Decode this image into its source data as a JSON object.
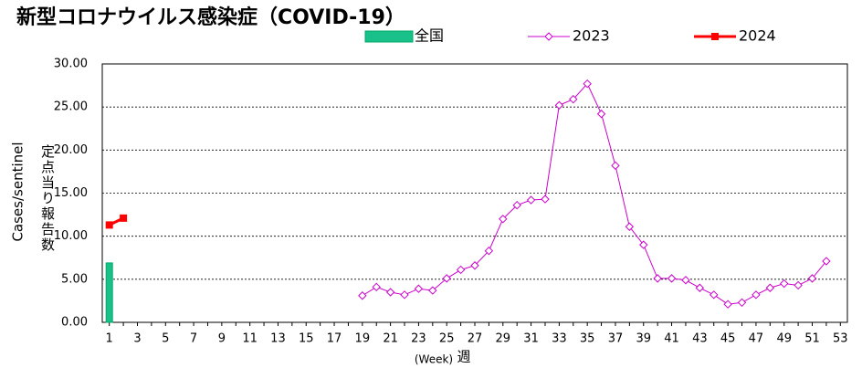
{
  "chart_data": {
    "type": "bar",
    "title": "新型コロナウイルス感染症（COVID-19）",
    "x_label": "(Week)",
    "x_label_ja": "週",
    "y_label": "Cases/sentinel",
    "y_label_ja": "定点当り報告数",
    "categories": [
      1,
      null,
      3,
      null,
      5,
      null,
      7,
      null,
      9,
      null,
      11,
      null,
      13,
      null,
      15,
      null,
      17,
      null,
      19,
      null,
      21,
      null,
      23,
      null,
      25,
      null,
      27,
      null,
      29,
      null,
      31,
      null,
      33,
      null,
      35,
      null,
      37,
      null,
      39,
      null,
      41,
      null,
      43,
      null,
      45,
      null,
      47,
      null,
      49,
      null,
      51,
      null,
      53
    ],
    "ylim": [
      0,
      30
    ],
    "yticks": [
      {
        "value": 0,
        "label": "0.00"
      },
      {
        "value": 5,
        "label": "5.00"
      },
      {
        "value": 10,
        "label": "10.00"
      },
      {
        "value": 15,
        "label": "15.00"
      },
      {
        "value": 20,
        "label": "20.00"
      },
      {
        "value": 25,
        "label": "25.00"
      },
      {
        "value": 30,
        "label": "30.00"
      }
    ],
    "grid": true,
    "legend": "top",
    "series": [
      {
        "name": "全国",
        "type": "bar",
        "color": "#19c08a",
        "values": [
          6.9,
          null,
          null,
          null,
          null,
          null,
          null,
          null,
          null,
          null,
          null,
          null,
          null,
          null,
          null,
          null,
          null,
          null,
          null,
          null,
          null,
          null,
          null,
          null,
          null,
          null,
          null,
          null,
          null,
          null,
          null,
          null,
          null,
          null,
          null,
          null,
          null,
          null,
          null,
          null,
          null,
          null,
          null,
          null,
          null,
          null,
          null,
          null,
          null,
          null,
          null,
          null,
          null
        ]
      },
      {
        "name": "2023",
        "type": "line",
        "color": "#cc00cc",
        "values": [
          null,
          null,
          null,
          null,
          null,
          null,
          null,
          null,
          null,
          null,
          null,
          null,
          null,
          null,
          null,
          null,
          null,
          null,
          3.1,
          4.1,
          3.5,
          3.2,
          3.9,
          3.7,
          5.1,
          6.1,
          6.6,
          8.3,
          12.0,
          13.6,
          14.2,
          14.3,
          25.2,
          25.9,
          27.7,
          24.2,
          18.2,
          11.1,
          9.0,
          5.1,
          5.1,
          4.9,
          4.0,
          3.2,
          2.1,
          2.3,
          3.2,
          4.0,
          4.5,
          4.3,
          5.1,
          7.1,
          null
        ]
      },
      {
        "name": "2024",
        "type": "line",
        "color": "#ff0000",
        "values": [
          11.3,
          12.1,
          null,
          null,
          null,
          null,
          null,
          null,
          null,
          null,
          null,
          null,
          null,
          null,
          null,
          null,
          null,
          null,
          null,
          null,
          null,
          null,
          null,
          null,
          null,
          null,
          null,
          null,
          null,
          null,
          null,
          null,
          null,
          null,
          null,
          null,
          null,
          null,
          null,
          null,
          null,
          null,
          null,
          null,
          null,
          null,
          null,
          null,
          null,
          null,
          null,
          null,
          null
        ]
      }
    ]
  }
}
